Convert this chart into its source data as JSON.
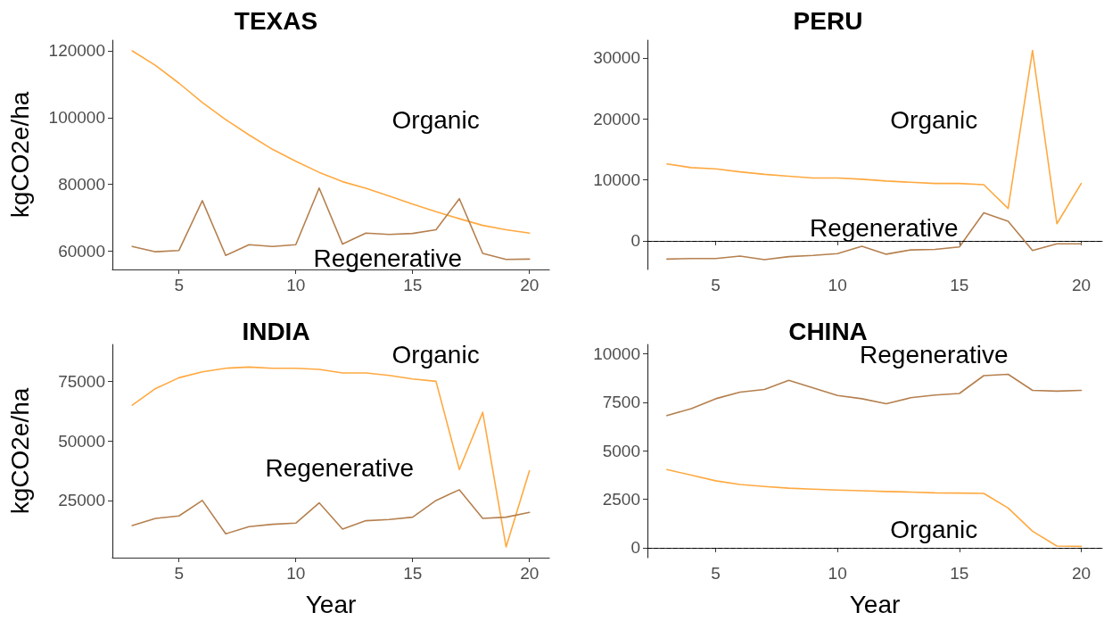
{
  "chart_data": [
    {
      "type": "line",
      "title": "TEXAS",
      "ylabel": "kgCO2e/ha",
      "grid": false,
      "x": [
        3,
        4,
        5,
        6,
        7,
        8,
        9,
        10,
        11,
        12,
        13,
        14,
        15,
        16,
        17,
        18,
        19,
        20
      ],
      "series": [
        {
          "name": "Organic",
          "color": "#ffa940",
          "values": [
            120000,
            115600,
            110300,
            104500,
            99400,
            94800,
            90500,
            86900,
            83600,
            80800,
            78800,
            76500,
            74100,
            71800,
            69700,
            67700,
            66400,
            65400
          ]
        },
        {
          "name": "Regenerative",
          "color": "#b5804f",
          "values": [
            61400,
            59800,
            60200,
            75100,
            58700,
            61900,
            61400,
            61900,
            78900,
            62100,
            65400,
            65000,
            65300,
            66400,
            75700,
            59300,
            57500,
            57600
          ]
        }
      ],
      "xlim": [
        2.15,
        20.85
      ],
      "xticks": [
        5,
        10,
        15,
        20
      ],
      "ylim": [
        54500,
        123200
      ],
      "yticks": [
        60000,
        80000,
        100000,
        120000
      ]
    },
    {
      "type": "line",
      "title": "PERU",
      "grid": false,
      "x": [
        3,
        4,
        5,
        6,
        7,
        8,
        9,
        10,
        11,
        12,
        13,
        14,
        15,
        16,
        17,
        18,
        19,
        20
      ],
      "series": [
        {
          "name": "Organic",
          "color": "#ffa940",
          "values": [
            12600,
            12000,
            11800,
            11300,
            10900,
            10600,
            10300,
            10300,
            10100,
            9800,
            9600,
            9400,
            9400,
            9200,
            5300,
            31200,
            2800,
            9400
          ]
        },
        {
          "name": "Regenerative",
          "color": "#b5804f",
          "values": [
            -3000,
            -2900,
            -2900,
            -2500,
            -3100,
            -2600,
            -2400,
            -2100,
            -900,
            -2200,
            -1500,
            -1400,
            -1000,
            4600,
            3200,
            -1600,
            -500,
            -500
          ]
        }
      ],
      "xlim": [
        2.2,
        20.86
      ],
      "xticks": [
        5,
        10,
        15,
        20
      ],
      "ylim": [
        -4700,
        32900
      ],
      "yticks": [
        0,
        10000,
        20000,
        30000
      ],
      "ref_lines": [
        {
          "axis": "y",
          "value": 0,
          "color": "#000000",
          "line_style": "dashed"
        }
      ]
    },
    {
      "type": "line",
      "title": "INDIA",
      "xlabel": "Year",
      "ylabel": "kgCO2e/ha",
      "grid": false,
      "x": [
        3,
        4,
        5,
        6,
        7,
        8,
        9,
        10,
        11,
        12,
        13,
        14,
        15,
        16,
        17,
        18,
        19,
        20
      ],
      "series": [
        {
          "name": "Organic",
          "color": "#ffa940",
          "values": [
            65000,
            72000,
            76500,
            79000,
            80500,
            81000,
            80500,
            80500,
            80000,
            78500,
            78500,
            77500,
            76000,
            75000,
            38000,
            62000,
            5500,
            37500
          ]
        },
        {
          "name": "Regenerative",
          "color": "#b5804f",
          "values": [
            14500,
            17500,
            18500,
            25000,
            11000,
            14000,
            15000,
            15500,
            24000,
            13000,
            16500,
            17000,
            18000,
            25000,
            29500,
            17500,
            18000,
            20000
          ]
        }
      ],
      "xlim": [
        2.15,
        20.85
      ],
      "xticks": [
        5,
        10,
        15,
        20
      ],
      "ylim": [
        1000,
        90500
      ],
      "yticks": [
        25000,
        50000,
        75000
      ]
    },
    {
      "type": "line",
      "title": "CHINA",
      "xlabel": "Year",
      "grid": false,
      "x": [
        3,
        4,
        5,
        6,
        7,
        8,
        9,
        10,
        11,
        12,
        13,
        14,
        15,
        16,
        17,
        18,
        19,
        20
      ],
      "series": [
        {
          "name": "Regenerative",
          "color": "#b5804f",
          "values": [
            6810,
            7170,
            7680,
            8020,
            8160,
            8630,
            8240,
            7850,
            7680,
            7420,
            7730,
            7870,
            7950,
            8870,
            8940,
            8110,
            8070,
            8110
          ]
        },
        {
          "name": "Organic",
          "color": "#ffa940",
          "values": [
            4030,
            3740,
            3450,
            3260,
            3160,
            3070,
            3020,
            2970,
            2940,
            2900,
            2870,
            2830,
            2820,
            2800,
            2050,
            850,
            90,
            70
          ]
        }
      ],
      "xlim": [
        2.2,
        20.86
      ],
      "xticks": [
        5,
        10,
        15,
        20
      ],
      "ylim": [
        -510,
        10480
      ],
      "yticks": [
        0,
        2500,
        5000,
        7500,
        10000
      ],
      "ref_lines": [
        {
          "axis": "y",
          "value": 0,
          "color": "#000000",
          "line_style": "dashed"
        }
      ]
    }
  ]
}
